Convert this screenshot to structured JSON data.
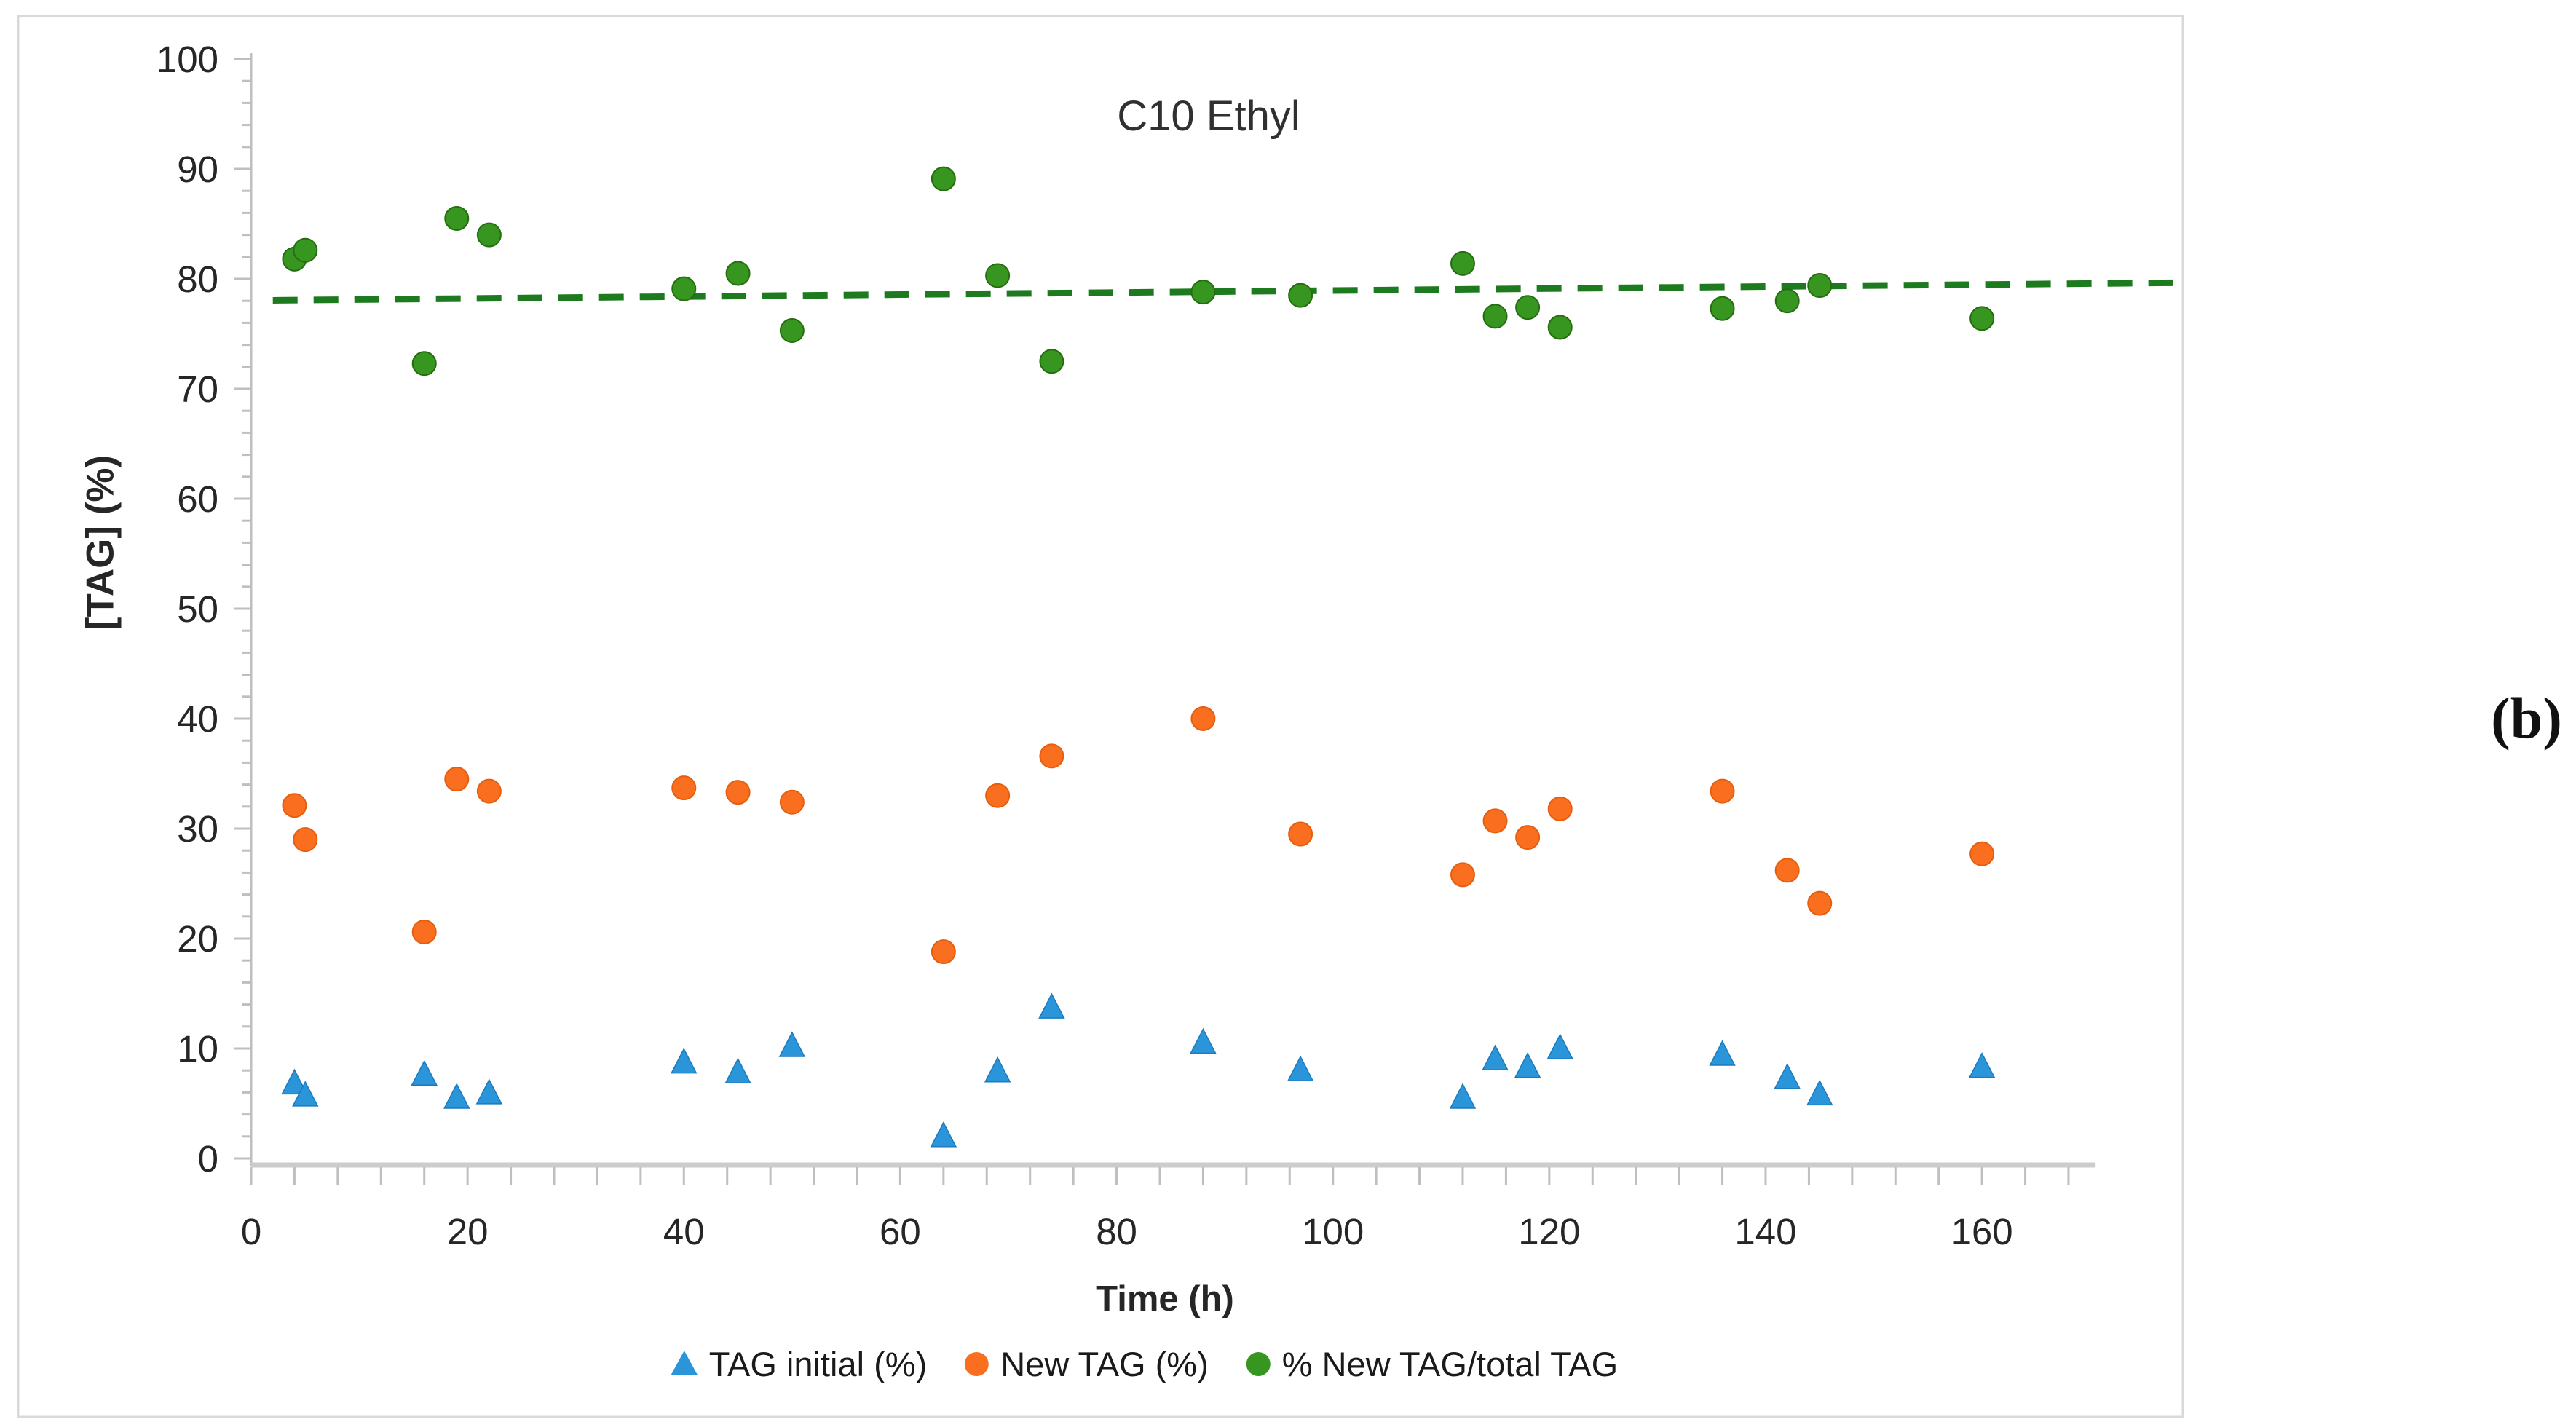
{
  "title": "C10 Ethyl",
  "figure_label": "(b)",
  "axes": {
    "x_title": "Time (h)",
    "y_title": "[TAG] (%)"
  },
  "legend": [
    {
      "label": "TAG initial (%)",
      "marker": "triangle",
      "color": "#2B95D9"
    },
    {
      "label": "New TAG (%)",
      "marker": "circle",
      "color": "#F96F1F"
    },
    {
      "label": "% New TAG/total TAG",
      "marker": "circle",
      "color": "#37961F"
    }
  ],
  "chart_data": {
    "type": "scatter",
    "title": "C10 Ethyl",
    "xlabel": "Time (h)",
    "ylabel": "[TAG] (%)",
    "xlim": [
      0,
      170.5
    ],
    "ylim": [
      0,
      100
    ],
    "grid": false,
    "legend_position": "bottom",
    "x_ticks": {
      "values": [
        0,
        20,
        40,
        60,
        80,
        100,
        120,
        140,
        160
      ],
      "labels": [
        "0",
        "20",
        "40",
        "60",
        "80",
        "100",
        "120",
        "140",
        "160"
      ]
    },
    "y_ticks": {
      "values": [
        0,
        10,
        20,
        30,
        40,
        50,
        60,
        70,
        80,
        90,
        100
      ],
      "labels": [
        "0",
        "10",
        "20",
        "30",
        "40",
        "50",
        "60",
        "70",
        "80",
        "90",
        "100"
      ]
    },
    "x_minor_tick": 4,
    "y_minor_tick": 2,
    "x": [
      4,
      5,
      16,
      19,
      22,
      40,
      45,
      50,
      64,
      69,
      74,
      88,
      97,
      112,
      115,
      118,
      121,
      136,
      142,
      145,
      160
    ],
    "series": [
      {
        "name": "TAG initial (%)",
        "marker": "triangle",
        "color": "#2B95D9",
        "edge": "#1B7BBE",
        "values": [
          6.8,
          5.7,
          7.6,
          5.5,
          5.9,
          8.7,
          7.8,
          10.2,
          2.0,
          7.9,
          13.7,
          10.5,
          8.0,
          5.5,
          9.0,
          8.3,
          10.0,
          9.4,
          7.3,
          5.8,
          8.3
        ]
      },
      {
        "name": "New TAG (%)",
        "marker": "circle",
        "color": "#F96F1F",
        "edge": "#E55E0E",
        "values": [
          32.1,
          29.0,
          20.6,
          34.5,
          33.4,
          33.7,
          33.3,
          32.4,
          18.8,
          33.0,
          36.6,
          40.0,
          29.5,
          25.8,
          30.7,
          29.2,
          31.8,
          33.4,
          26.2,
          23.2,
          27.7
        ]
      },
      {
        "name": "% New TAG/total TAG",
        "marker": "circle",
        "color": "#37961F",
        "edge": "#256D10",
        "values": [
          81.8,
          82.6,
          72.3,
          85.5,
          84.0,
          79.1,
          80.5,
          75.3,
          89.1,
          80.3,
          72.5,
          78.8,
          78.5,
          81.4,
          76.6,
          77.4,
          75.6,
          77.3,
          78.0,
          79.4,
          76.4
        ]
      }
    ],
    "trendline": {
      "series": "% New TAG/total TAG",
      "style": "dashed",
      "color": "#1E7A1E",
      "x1": 2.0,
      "y1": 78.05,
      "x2": 178.3,
      "y2": 79.65
    }
  }
}
